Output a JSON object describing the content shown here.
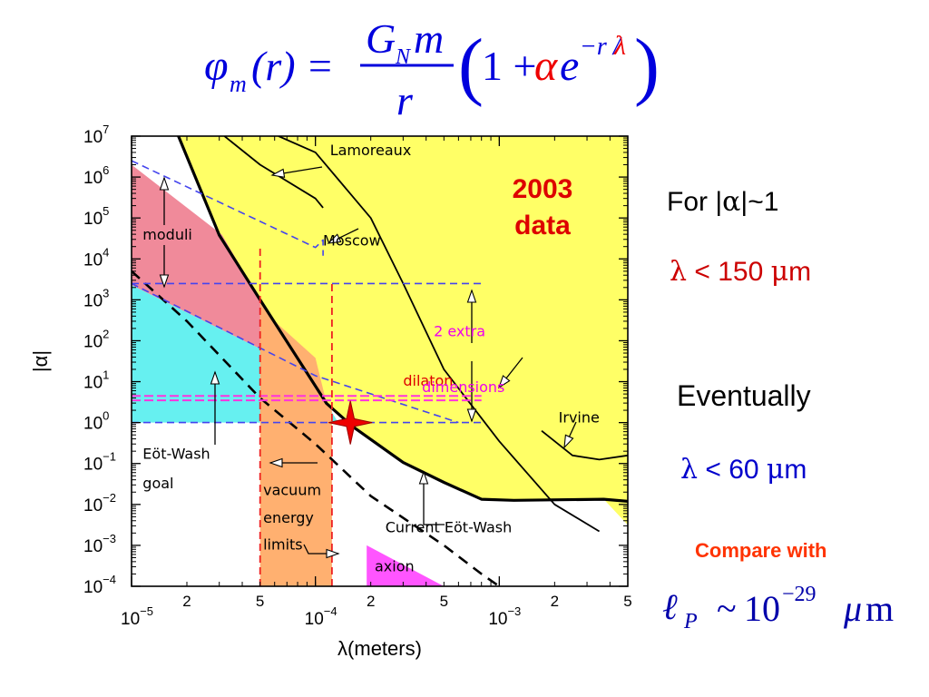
{
  "formula": {
    "lhs_phi": "φ",
    "lhs_sub": "m",
    "lhs_arg": "(r) =",
    "num_G": "G",
    "num_sub": "N",
    "num_m": "m",
    "den": "r",
    "paren_open": "(",
    "one_plus": "1 +",
    "alpha": "α",
    "e": "e",
    "exp_prefix": "−r /",
    "exp_lambda": "λ",
    "paren_close": ")"
  },
  "side": {
    "for_prefix": "For |",
    "for_alpha": "α",
    "for_suffix": "|~1",
    "l150_lambda": "λ",
    "l150_rest": " < 150 ",
    "l150_mu": "μ",
    "l150_unit": "m",
    "eventually": "Eventually",
    "l60_lambda": "λ",
    "l60_rest": " < 60 ",
    "l60_mu": "μ",
    "l60_unit": "m",
    "compare": "Compare with",
    "planck_l": "ℓ",
    "planck_sub": "P",
    "planck_tilde": "~",
    "planck_base": "10",
    "planck_exp": "−29",
    "planck_mu": "μ",
    "planck_unit": "m"
  },
  "colors": {
    "formula": "#0000dd",
    "formula_red": "#ee0000",
    "yellow": "#ffff66",
    "pink": "#f08a9a",
    "cyan": "#66f0f0",
    "orange": "#ffb070",
    "magenta_region": "#ff55ff",
    "blue_dash": "#4444ee",
    "red_dash": "#ee2222",
    "magenta_dash": "#ff33dd",
    "red_2003": "#dd0000",
    "star": "#ee0000"
  },
  "chart_data": {
    "type": "area",
    "xlabel": "λ(meters)",
    "ylabel": "|α|",
    "xscale": "log",
    "yscale": "log",
    "xlim": [
      1e-05,
      0.005
    ],
    "ylim": [
      0.0001,
      10000000
    ],
    "x_ticks": [
      {
        "x": 1e-05,
        "label": "10",
        "exp": "−5"
      },
      {
        "x": 2e-05,
        "label": "2"
      },
      {
        "x": 5e-05,
        "label": "5"
      },
      {
        "x": 0.0001,
        "label": "10",
        "exp": "−4"
      },
      {
        "x": 0.0002,
        "label": "2"
      },
      {
        "x": 0.0005,
        "label": "5"
      },
      {
        "x": 0.001,
        "label": "10",
        "exp": "−3"
      },
      {
        "x": 0.002,
        "label": "2"
      },
      {
        "x": 0.005,
        "label": "5"
      }
    ],
    "y_ticks": [
      {
        "y": 10000000,
        "label": "10",
        "exp": "7"
      },
      {
        "y": 1000000,
        "label": "10",
        "exp": "6"
      },
      {
        "y": 100000,
        "label": "10",
        "exp": "5"
      },
      {
        "y": 10000,
        "label": "10",
        "exp": "4"
      },
      {
        "y": 1000,
        "label": "10",
        "exp": "3"
      },
      {
        "y": 100,
        "label": "10",
        "exp": "2"
      },
      {
        "y": 10,
        "label": "10",
        "exp": "1"
      },
      {
        "y": 1,
        "label": "10",
        "exp": "0"
      },
      {
        "y": 0.1,
        "label": "10",
        "exp": "−1"
      },
      {
        "y": 0.01,
        "label": "10",
        "exp": "−2"
      },
      {
        "y": 0.001,
        "label": "10",
        "exp": "−3"
      },
      {
        "y": 0.0001,
        "label": "10",
        "exp": "−4"
      }
    ],
    "regions": [
      {
        "key": "excluded",
        "color": "#ffff66",
        "points": [
          [
            1.8e-05,
            10000000
          ],
          [
            0.005,
            10000000
          ],
          [
            0.005,
            0.00316
          ],
          [
            0.0037,
            0.0134
          ],
          [
            0.0012,
            0.0126
          ],
          [
            0.0008,
            0.0134
          ],
          [
            0.0005,
            0.0347
          ],
          [
            0.0003,
            0.106
          ],
          [
            0.00016,
            0.794
          ],
          [
            0.000115,
            2.93
          ],
          [
            5e-05,
            1000
          ],
          [
            3e-05,
            38000
          ]
        ]
      },
      {
        "key": "moduli",
        "color": "#f08a9a",
        "points": [
          [
            1e-05,
            2000000
          ],
          [
            3.1e-05,
            39000
          ],
          [
            5e-05,
            1000
          ],
          [
            7e-05,
            30
          ],
          [
            1e-05,
            2300
          ]
        ]
      },
      {
        "key": "eot-wash-goal",
        "color": "#66f0f0",
        "points": [
          [
            1e-05,
            2300
          ],
          [
            7e-05,
            30
          ],
          [
            0.000115,
            2.93
          ],
          [
            0.000133,
            1
          ],
          [
            1e-05,
            1
          ]
        ]
      },
      {
        "key": "vacuum-energy",
        "color": "#ffb070",
        "points": [
          [
            5e-05,
            0.0001
          ],
          [
            5e-05,
            1000
          ],
          [
            6e-05,
            300
          ],
          [
            0.0001,
            38
          ],
          [
            0.000115,
            2.93
          ],
          [
            0.000123,
            1.93
          ],
          [
            0.000123,
            0.0001
          ]
        ]
      },
      {
        "key": "axion",
        "color": "#ff55ff",
        "points": [
          [
            0.00019,
            0.001
          ],
          [
            0.0005,
            0.0001
          ],
          [
            0.00019,
            0.0001
          ]
        ]
      }
    ],
    "series": [
      {
        "key": "current-eot-wash",
        "style": "solid-thick",
        "points": [
          [
            1.8e-05,
            10000000
          ],
          [
            3e-05,
            38000
          ],
          [
            5e-05,
            1000
          ],
          [
            0.000115,
            2.93
          ],
          [
            0.00016,
            0.794
          ],
          [
            0.0003,
            0.106
          ],
          [
            0.0005,
            0.0347
          ],
          [
            0.0008,
            0.0134
          ],
          [
            0.0012,
            0.0126
          ],
          [
            0.0037,
            0.0134
          ],
          [
            0.005,
            0.0119
          ]
        ]
      },
      {
        "key": "lamoreaux",
        "style": "solid",
        "points": [
          [
            3.2e-05,
            10000000
          ],
          [
            5e-05,
            2000000
          ],
          [
            0.0001,
            300000
          ],
          [
            0.00011,
            178000
          ]
        ]
      },
      {
        "key": "moscow",
        "style": "solid",
        "points": [
          [
            6.3e-05,
            10000000
          ],
          [
            0.0001,
            4000000
          ],
          [
            0.0002,
            100000
          ],
          [
            0.0003,
            2500
          ],
          [
            0.0005,
            20
          ],
          [
            0.001,
            0.35
          ],
          [
            0.002,
            0.01
          ],
          [
            0.0035,
            0.0022
          ]
        ]
      },
      {
        "key": "irvine",
        "style": "solid",
        "points": [
          [
            0.0017,
            0.63
          ],
          [
            0.0025,
            0.158
          ],
          [
            0.0035,
            0.125
          ],
          [
            0.005,
            0.158
          ]
        ]
      },
      {
        "key": "vacuum-dashed",
        "style": "dashed-thick",
        "points": [
          [
            1e-05,
            5000
          ],
          [
            2e-05,
            300
          ],
          [
            5e-05,
            4
          ],
          [
            0.0001,
            0.3
          ],
          [
            0.0002,
            0.016
          ],
          [
            0.0005,
            0.001
          ],
          [
            0.0008,
            0.0002
          ],
          [
            0.001,
            0.0001
          ]
        ]
      },
      {
        "key": "moduli-upper",
        "style": "blue-dashed",
        "points": [
          [
            1e-05,
            2500000
          ],
          [
            0.0001,
            19000
          ],
          [
            0.00011,
            29000
          ],
          [
            0.00011,
            12000
          ]
        ]
      },
      {
        "key": "moduli-lower",
        "style": "blue-dashed",
        "points": [
          [
            1e-05,
            2500
          ],
          [
            0.0001,
            14
          ],
          [
            0.0006,
            1
          ]
        ]
      },
      {
        "key": "dilaton-upper",
        "style": "blue-dashed",
        "points": [
          [
            1e-05,
            2500
          ],
          [
            0.0008,
            2500
          ]
        ]
      },
      {
        "key": "goal-level",
        "style": "blue-dashed",
        "points": [
          [
            1e-05,
            1
          ],
          [
            0.0008,
            1
          ]
        ]
      },
      {
        "key": "extra-dim-1",
        "style": "magenta-dashed",
        "points": [
          [
            1e-05,
            3.5
          ],
          [
            0.0008,
            3.5
          ]
        ]
      },
      {
        "key": "extra-dim-2",
        "style": "magenta-dashed",
        "points": [
          [
            1e-05,
            4.5
          ],
          [
            0.0008,
            4.5
          ]
        ]
      },
      {
        "key": "vac-limit-left",
        "style": "red-dashed",
        "points": [
          [
            5e-05,
            0.0001
          ],
          [
            5e-05,
            23000
          ]
        ]
      },
      {
        "key": "vac-limit-right",
        "style": "red-dashed",
        "points": [
          [
            0.000123,
            0.0001
          ],
          [
            0.000123,
            2500
          ]
        ]
      }
    ],
    "labels": [
      {
        "key": "lamoreaux",
        "text": "Lamoreaux",
        "x": 0.00012,
        "y": 3400000,
        "color": "#000000"
      },
      {
        "key": "moscow",
        "text": "Moscow",
        "x": 0.00011,
        "y": 21000,
        "color": "#000000"
      },
      {
        "key": "moduli",
        "text": "moduli",
        "x": 1.15e-05,
        "y": 30000,
        "color": "#000000"
      },
      {
        "key": "dilaton",
        "text": "dilaton",
        "x": 0.0003,
        "y": 8,
        "color": "#dd0000"
      },
      {
        "key": "extra-1",
        "text": "2  extra",
        "x": 0.00044,
        "y": 130,
        "color": "#ee00ee"
      },
      {
        "key": "extra-2",
        "text": "dimensions",
        "x": 0.00038,
        "y": 5.6,
        "color": "#ee00ee"
      },
      {
        "key": "irvine",
        "text": "Irvine",
        "x": 0.0021,
        "y": 1.0,
        "color": "#000000"
      },
      {
        "key": "goal-1",
        "text": "Eöt-Wash",
        "x": 1.15e-05,
        "y": 0.13,
        "color": "#000000"
      },
      {
        "key": "goal-2",
        "text": "goal",
        "x": 1.15e-05,
        "y": 0.025,
        "color": "#000000"
      },
      {
        "key": "vac-1",
        "text": "vacuum",
        "x": 5.2e-05,
        "y": 0.017,
        "color": "#000000"
      },
      {
        "key": "vac-2",
        "text": "energy",
        "x": 5.2e-05,
        "y": 0.0036,
        "color": "#000000"
      },
      {
        "key": "vac-3",
        "text": "limits",
        "x": 5.2e-05,
        "y": 0.00079,
        "color": "#000000"
      },
      {
        "key": "current",
        "text": "Current Eöt-Wash",
        "x": 0.00024,
        "y": 0.0021,
        "color": "#000000"
      },
      {
        "key": "axion",
        "text": "axion",
        "x": 0.00021,
        "y": 0.00023,
        "color": "#000000"
      }
    ],
    "annotation": {
      "line1": "2003",
      "line2": "data",
      "color": "#dd0000"
    },
    "marker": {
      "type": "star",
      "x": 0.000155,
      "y": 1,
      "color": "#ee0000"
    }
  }
}
